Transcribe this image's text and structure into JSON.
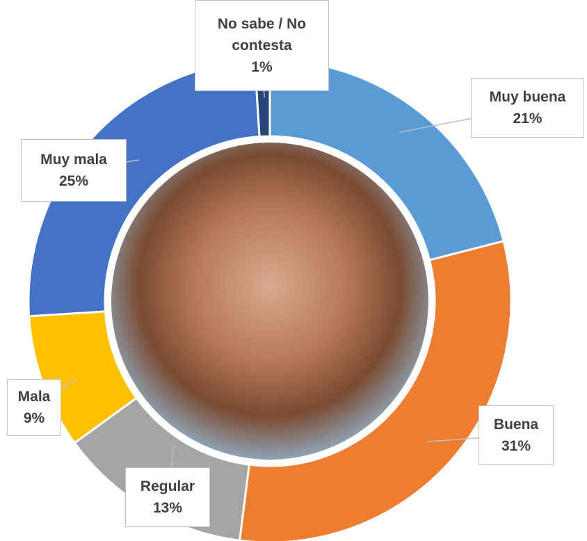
{
  "chart_data": {
    "type": "donut",
    "categories": [
      "Muy buena",
      "Buena",
      "Regular",
      "Mala",
      "Muy mala",
      "No sabe / No contesta"
    ],
    "values": [
      21,
      31,
      13,
      9,
      25,
      1
    ],
    "value_labels": [
      "21%",
      "31%",
      "13%",
      "9%",
      "25%",
      "1%"
    ],
    "colors": [
      "#5b9bd5",
      "#ed7d31",
      "#a5a5a5",
      "#ffc000",
      "#4472c4",
      "#264478"
    ]
  }
}
